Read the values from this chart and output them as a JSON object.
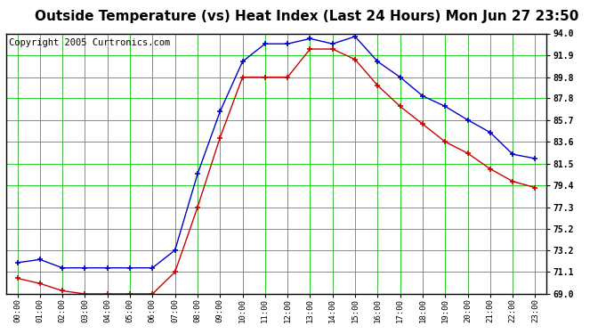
{
  "title": "Outside Temperature (vs) Heat Index (Last 24 Hours) Mon Jun 27 23:50",
  "copyright": "Copyright 2005 Curtronics.com",
  "x_labels": [
    "00:00",
    "01:00",
    "02:00",
    "03:00",
    "04:00",
    "05:00",
    "06:00",
    "07:00",
    "08:00",
    "09:00",
    "10:00",
    "11:00",
    "12:00",
    "13:00",
    "14:00",
    "15:00",
    "16:00",
    "17:00",
    "18:00",
    "19:00",
    "20:00",
    "21:00",
    "22:00",
    "23:00"
  ],
  "blue_data": [
    72.0,
    72.3,
    71.5,
    71.5,
    71.5,
    71.5,
    71.5,
    73.2,
    80.5,
    86.5,
    91.3,
    93.0,
    93.0,
    93.5,
    93.0,
    93.7,
    91.3,
    89.8,
    88.0,
    87.0,
    85.7,
    84.5,
    82.4,
    82.0
  ],
  "red_data": [
    70.5,
    70.0,
    69.3,
    69.0,
    69.0,
    69.0,
    69.0,
    71.1,
    77.3,
    84.0,
    89.8,
    89.8,
    89.8,
    92.5,
    92.5,
    91.5,
    89.0,
    87.0,
    85.3,
    83.6,
    82.5,
    81.0,
    79.8,
    79.2
  ],
  "y_ticks": [
    69.0,
    71.1,
    73.2,
    75.2,
    77.3,
    79.4,
    81.5,
    83.6,
    85.7,
    87.8,
    89.8,
    91.9,
    94.0
  ],
  "ylim": [
    69.0,
    94.0
  ],
  "bg_color": "#ffffff",
  "grid_color": "#00cc00",
  "plot_bg": "#ffffff",
  "blue_color": "#0000cc",
  "red_color": "#cc0000",
  "title_fontsize": 11,
  "copyright_fontsize": 7.5
}
